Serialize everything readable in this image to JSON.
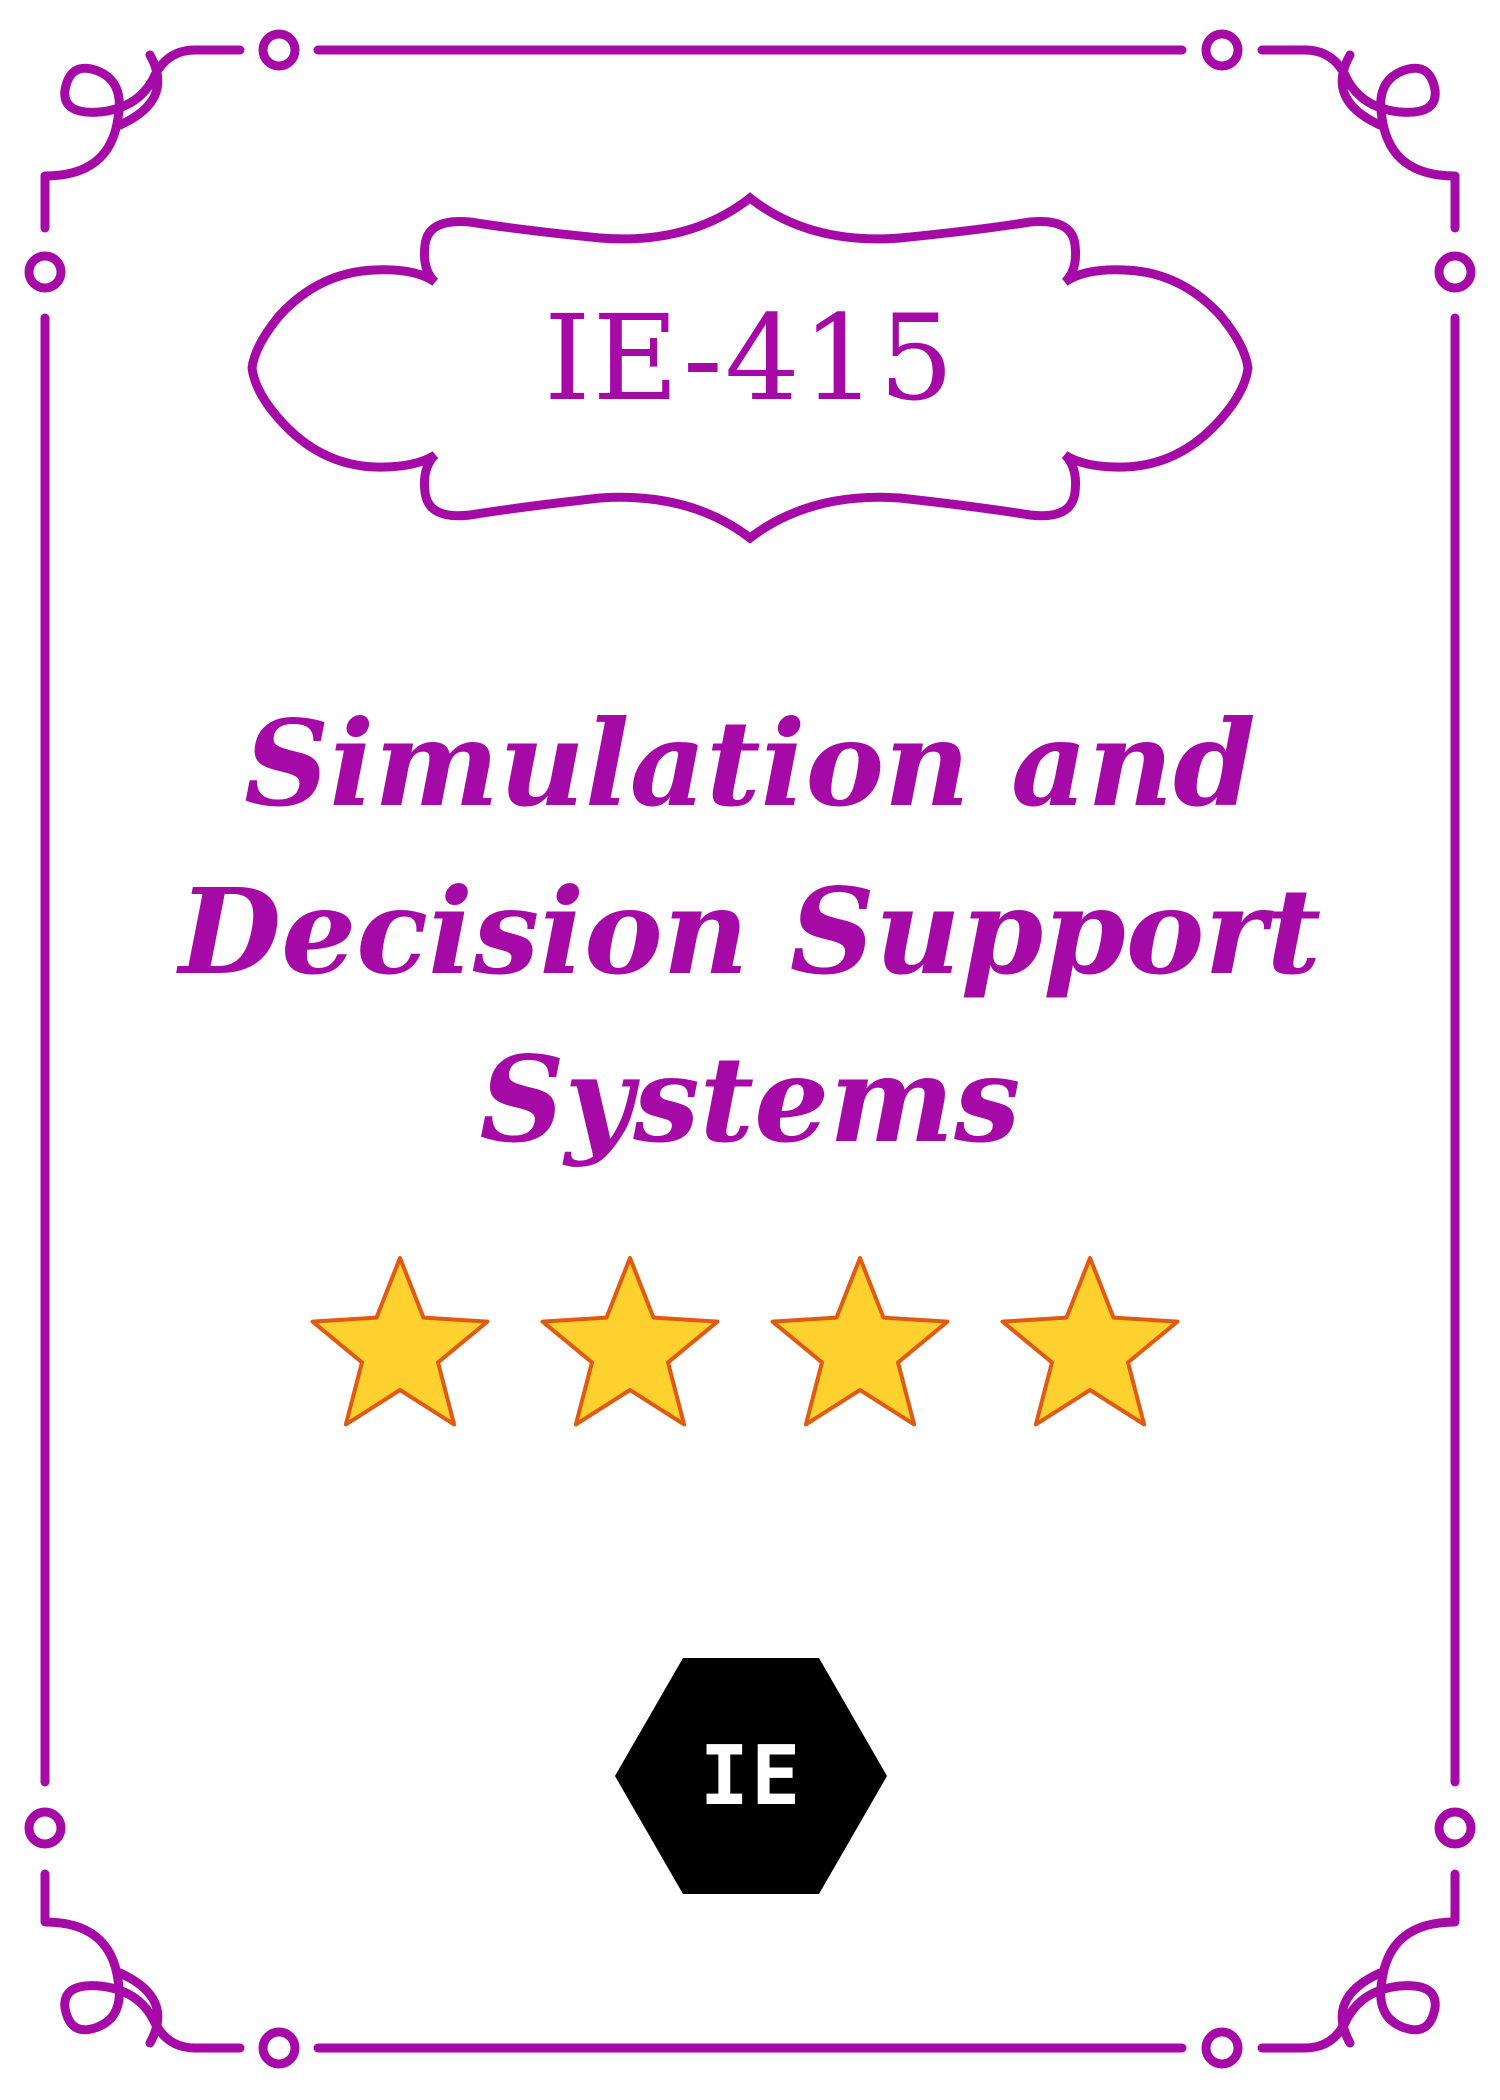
{
  "course": {
    "code": "IE-415",
    "title_lines": [
      "Simulation and",
      "Decision Support",
      "Systems"
    ]
  },
  "rating": {
    "stars": 4,
    "icon": "star-icon"
  },
  "logo": {
    "text": "IE",
    "icon": "hexagon-logo"
  },
  "colors": {
    "accent": "#a50aa6",
    "star_fill": "#ffd12e",
    "star_outline": "#e05a12",
    "logo_bg": "#000000",
    "logo_text": "#ffffff"
  }
}
